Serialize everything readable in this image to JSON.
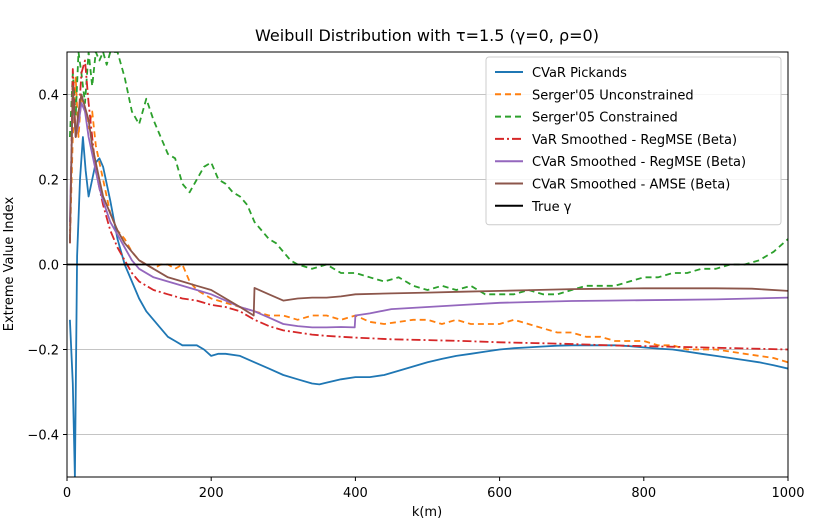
{
  "chart_data": {
    "type": "line",
    "title": "Weibull Distribution with τ=1.5 (γ=0, ρ=0)",
    "xlabel": "k(m)",
    "ylabel": "Extreme Value Index",
    "xlim": [
      0,
      1000
    ],
    "ylim": [
      -0.5,
      0.5
    ],
    "xticks": [
      0,
      200,
      400,
      600,
      800,
      1000
    ],
    "yticks": [
      -0.4,
      -0.2,
      0.0,
      0.2,
      0.4
    ],
    "ytick_labels": [
      "−0.4",
      "−0.2",
      "0.0",
      "0.2",
      "0.4"
    ],
    "grid": "horizontal",
    "legend_position": "top-right",
    "series": [
      {
        "name": "CVaR Pickands",
        "color": "#1f77b4",
        "dash": "solid",
        "x": [
          4,
          8,
          11,
          14,
          18,
          22,
          26,
          30,
          35,
          40,
          45,
          50,
          60,
          70,
          80,
          90,
          100,
          110,
          120,
          130,
          140,
          150,
          160,
          170,
          180,
          190,
          200,
          210,
          220,
          240,
          260,
          280,
          300,
          320,
          340,
          350,
          360,
          380,
          400,
          420,
          440,
          460,
          480,
          500,
          520,
          540,
          560,
          580,
          600,
          620,
          640,
          660,
          680,
          700,
          720,
          740,
          760,
          780,
          800,
          820,
          840,
          860,
          880,
          900,
          920,
          940,
          960,
          980,
          1000
        ],
        "y": [
          -0.13,
          -0.28,
          -0.5,
          0.02,
          0.2,
          0.3,
          0.22,
          0.16,
          0.2,
          0.24,
          0.25,
          0.23,
          0.15,
          0.06,
          0.0,
          -0.04,
          -0.08,
          -0.11,
          -0.13,
          -0.15,
          -0.17,
          -0.18,
          -0.19,
          -0.19,
          -0.19,
          -0.2,
          -0.215,
          -0.21,
          -0.21,
          -0.215,
          -0.23,
          -0.245,
          -0.26,
          -0.27,
          -0.28,
          -0.282,
          -0.278,
          -0.27,
          -0.265,
          -0.265,
          -0.26,
          -0.25,
          -0.24,
          -0.23,
          -0.222,
          -0.215,
          -0.21,
          -0.205,
          -0.2,
          -0.197,
          -0.195,
          -0.193,
          -0.191,
          -0.19,
          -0.19,
          -0.19,
          -0.19,
          -0.192,
          -0.195,
          -0.198,
          -0.2,
          -0.205,
          -0.21,
          -0.215,
          -0.22,
          -0.225,
          -0.23,
          -0.237,
          -0.245
        ]
      },
      {
        "name": "Serger'05 Unconstrained",
        "color": "#ff7f0e",
        "dash": "6,4",
        "x": [
          4,
          8,
          12,
          16,
          20,
          25,
          30,
          35,
          40,
          45,
          50,
          55,
          60,
          70,
          80,
          90,
          100,
          110,
          120,
          130,
          140,
          150,
          160,
          170,
          180,
          190,
          200,
          220,
          240,
          260,
          280,
          300,
          320,
          340,
          360,
          380,
          400,
          420,
          440,
          460,
          480,
          500,
          520,
          540,
          560,
          580,
          600,
          620,
          640,
          660,
          680,
          700,
          720,
          740,
          760,
          780,
          800,
          820,
          840,
          860,
          880,
          900,
          920,
          940,
          960,
          980,
          1000
        ],
        "y": [
          0.05,
          0.3,
          0.44,
          0.3,
          0.4,
          0.36,
          0.32,
          0.36,
          0.28,
          0.24,
          0.2,
          0.16,
          0.12,
          0.08,
          0.06,
          0.03,
          0.01,
          0.0,
          -0.01,
          0.0,
          0.0,
          -0.01,
          0.0,
          -0.04,
          -0.06,
          -0.07,
          -0.08,
          -0.09,
          -0.1,
          -0.11,
          -0.12,
          -0.12,
          -0.13,
          -0.12,
          -0.12,
          -0.13,
          -0.12,
          -0.135,
          -0.14,
          -0.135,
          -0.13,
          -0.13,
          -0.14,
          -0.13,
          -0.14,
          -0.14,
          -0.14,
          -0.13,
          -0.14,
          -0.15,
          -0.16,
          -0.16,
          -0.17,
          -0.17,
          -0.18,
          -0.18,
          -0.18,
          -0.19,
          -0.19,
          -0.2,
          -0.2,
          -0.2,
          -0.205,
          -0.21,
          -0.215,
          -0.22,
          -0.23
        ]
      },
      {
        "name": "Serger'05 Constrained",
        "color": "#2ca02c",
        "dash": "6,4",
        "x": [
          4,
          8,
          12,
          16,
          20,
          25,
          30,
          35,
          40,
          45,
          50,
          55,
          60,
          70,
          80,
          90,
          100,
          110,
          120,
          130,
          140,
          150,
          160,
          170,
          180,
          190,
          200,
          210,
          220,
          230,
          240,
          250,
          260,
          270,
          280,
          290,
          300,
          310,
          320,
          340,
          360,
          380,
          400,
          420,
          440,
          460,
          480,
          500,
          520,
          540,
          560,
          580,
          600,
          620,
          640,
          660,
          680,
          700,
          720,
          740,
          760,
          780,
          800,
          820,
          840,
          860,
          880,
          900,
          920,
          940,
          960,
          980,
          1000
        ],
        "y": [
          0.3,
          0.45,
          0.35,
          0.5,
          0.45,
          0.38,
          0.5,
          0.42,
          0.5,
          0.48,
          0.5,
          0.47,
          0.5,
          0.5,
          0.44,
          0.36,
          0.33,
          0.39,
          0.34,
          0.3,
          0.26,
          0.25,
          0.19,
          0.17,
          0.2,
          0.23,
          0.24,
          0.2,
          0.19,
          0.17,
          0.16,
          0.14,
          0.1,
          0.08,
          0.06,
          0.05,
          0.03,
          0.01,
          0.0,
          -0.01,
          0.0,
          -0.02,
          -0.02,
          -0.03,
          -0.04,
          -0.03,
          -0.05,
          -0.06,
          -0.05,
          -0.06,
          -0.05,
          -0.07,
          -0.07,
          -0.07,
          -0.06,
          -0.07,
          -0.07,
          -0.06,
          -0.05,
          -0.05,
          -0.05,
          -0.04,
          -0.03,
          -0.03,
          -0.02,
          -0.02,
          -0.01,
          -0.01,
          0.0,
          0.0,
          0.01,
          0.03,
          0.06
        ]
      },
      {
        "name": "VaR Smoothed - RegMSE (Beta)",
        "color": "#d62728",
        "dash": "9,3,2,3",
        "x": [
          4,
          8,
          12,
          16,
          20,
          25,
          30,
          35,
          40,
          45,
          50,
          60,
          70,
          80,
          90,
          100,
          120,
          140,
          160,
          180,
          200,
          220,
          240,
          260,
          280,
          300,
          320,
          340,
          360,
          380,
          400,
          450,
          500,
          550,
          600,
          650,
          700,
          750,
          800,
          850,
          900,
          950,
          1000
        ],
        "y": [
          0.05,
          0.46,
          0.3,
          0.34,
          0.45,
          0.48,
          0.38,
          0.3,
          0.22,
          0.18,
          0.14,
          0.08,
          0.04,
          0.01,
          -0.02,
          -0.04,
          -0.06,
          -0.07,
          -0.08,
          -0.085,
          -0.095,
          -0.1,
          -0.11,
          -0.13,
          -0.145,
          -0.155,
          -0.16,
          -0.165,
          -0.168,
          -0.17,
          -0.172,
          -0.176,
          -0.178,
          -0.18,
          -0.183,
          -0.185,
          -0.187,
          -0.19,
          -0.192,
          -0.194,
          -0.196,
          -0.198,
          -0.2
        ]
      },
      {
        "name": "CVaR Smoothed - RegMSE (Beta)",
        "color": "#9467bd",
        "dash": "solid",
        "x": [
          4,
          8,
          12,
          16,
          20,
          25,
          30,
          35,
          40,
          45,
          50,
          60,
          70,
          80,
          90,
          100,
          120,
          140,
          160,
          180,
          200,
          220,
          240,
          260,
          280,
          300,
          320,
          340,
          360,
          380,
          399,
          400,
          420,
          450,
          500,
          550,
          600,
          650,
          700,
          750,
          800,
          850,
          900,
          950,
          1000
        ],
        "y": [
          0.1,
          0.4,
          0.3,
          0.33,
          0.38,
          0.36,
          0.3,
          0.26,
          0.22,
          0.18,
          0.15,
          0.1,
          0.07,
          0.04,
          0.01,
          -0.01,
          -0.03,
          -0.04,
          -0.05,
          -0.06,
          -0.07,
          -0.085,
          -0.1,
          -0.11,
          -0.125,
          -0.14,
          -0.145,
          -0.148,
          -0.148,
          -0.147,
          -0.148,
          -0.12,
          -0.115,
          -0.105,
          -0.1,
          -0.095,
          -0.09,
          -0.088,
          -0.086,
          -0.085,
          -0.084,
          -0.083,
          -0.082,
          -0.08,
          -0.078
        ]
      },
      {
        "name": "CVaR Smoothed - AMSE (Beta)",
        "color": "#8c564b",
        "dash": "solid",
        "x": [
          4,
          8,
          12,
          16,
          20,
          25,
          30,
          35,
          40,
          45,
          50,
          60,
          70,
          80,
          90,
          100,
          120,
          140,
          160,
          180,
          200,
          220,
          240,
          259,
          260,
          280,
          300,
          320,
          340,
          360,
          380,
          400,
          450,
          500,
          550,
          600,
          650,
          700,
          750,
          800,
          850,
          900,
          950,
          1000
        ],
        "y": [
          0.05,
          0.42,
          0.3,
          0.36,
          0.4,
          0.37,
          0.34,
          0.28,
          0.24,
          0.2,
          0.16,
          0.12,
          0.08,
          0.05,
          0.03,
          0.01,
          -0.01,
          -0.03,
          -0.04,
          -0.05,
          -0.06,
          -0.08,
          -0.1,
          -0.12,
          -0.055,
          -0.07,
          -0.085,
          -0.08,
          -0.078,
          -0.078,
          -0.075,
          -0.07,
          -0.068,
          -0.066,
          -0.064,
          -0.062,
          -0.06,
          -0.058,
          -0.057,
          -0.056,
          -0.056,
          -0.056,
          -0.057,
          -0.062
        ]
      },
      {
        "name": "True γ",
        "color": "#000000",
        "dash": "solid",
        "x": [
          0,
          1000
        ],
        "y": [
          0.0,
          0.0
        ]
      }
    ]
  }
}
